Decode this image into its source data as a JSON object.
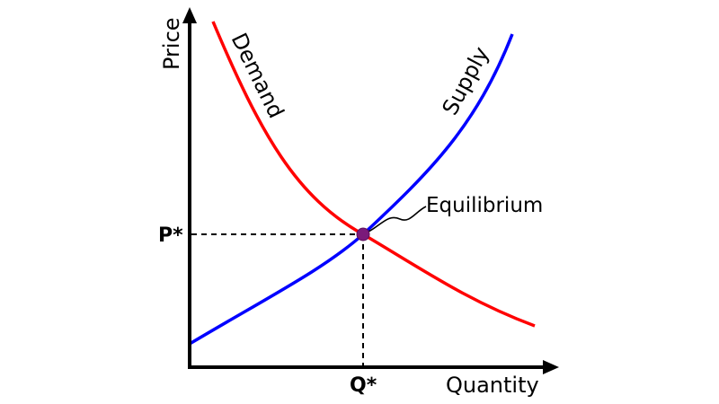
{
  "diagram": {
    "y_axis_label": "Price",
    "x_axis_label": "Quantity",
    "demand_label": "Demand",
    "supply_label": "Supply",
    "equilibrium_label": "Equilibrium",
    "price_marker": "P*",
    "quantity_marker": "Q*"
  },
  "colors": {
    "demand": "#ff0000",
    "supply": "#0000ff",
    "equilibrium_point": "#7a1a7a",
    "axes": "#000000"
  }
}
